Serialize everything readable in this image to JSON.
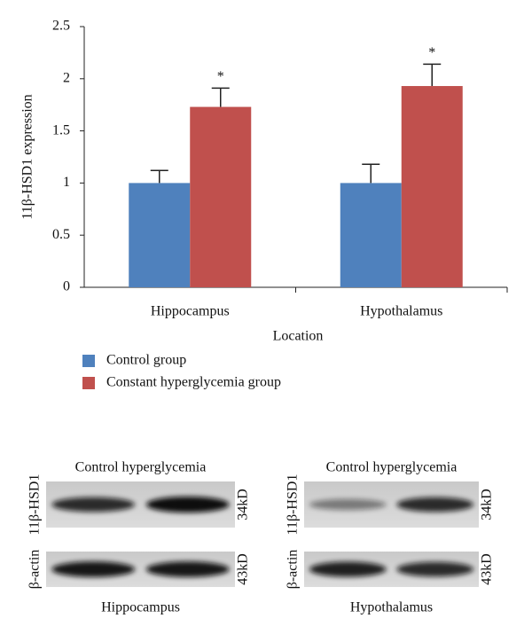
{
  "chart_data": {
    "type": "bar",
    "y_label": "11β-HSD1 expression",
    "x_label": "Location",
    "categories": [
      "Hippocampus",
      "Hypothalamus"
    ],
    "series": [
      {
        "name": "Control group",
        "color": "#4f81bd",
        "values": [
          1,
          1
        ],
        "errors": [
          0.12,
          0.18
        ]
      },
      {
        "name": "Constant hyperglycemia group",
        "color": "#c0504d",
        "values": [
          1.73,
          1.93
        ],
        "errors": [
          0.18,
          0.21
        ]
      }
    ],
    "annotations": [
      "*",
      "*"
    ],
    "ylim": [
      0,
      2.5
    ],
    "yticks": [
      0,
      0.5,
      1,
      1.5,
      2,
      2.5
    ],
    "legend": "bottom-left"
  },
  "blots": [
    {
      "header": "Control hyperglycemia",
      "caption": "Hippocampus",
      "rows": [
        {
          "label": "11β-HSD1",
          "size": "34kD"
        },
        {
          "label": "β-actin",
          "size": "43kD"
        }
      ]
    },
    {
      "header": "Control hyperglycemia",
      "caption": "Hypothalamus",
      "rows": [
        {
          "label": "11β-HSD1",
          "size": "34kD"
        },
        {
          "label": "β-actin",
          "size": "43kD"
        }
      ]
    }
  ]
}
